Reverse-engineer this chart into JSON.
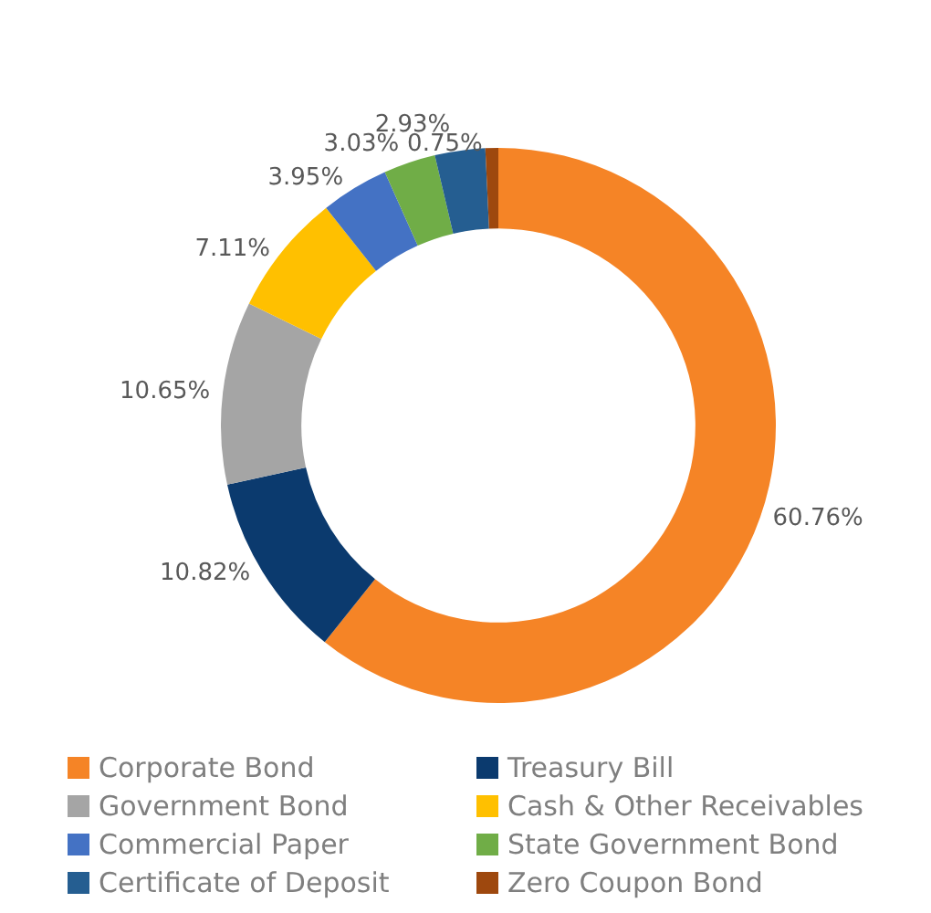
{
  "chart_data": {
    "type": "donut",
    "categories": [
      "Corporate Bond",
      "Treasury Bill",
      "Government Bond",
      "Cash & Other Receivables",
      "Commercial Paper",
      "State Government Bond",
      "Certificate of Deposit",
      "Zero Coupon Bond"
    ],
    "values": [
      60.76,
      10.82,
      10.65,
      7.11,
      3.95,
      3.03,
      2.93,
      0.75
    ],
    "colors": [
      "#f58426",
      "#0b3a6e",
      "#a5a5a5",
      "#ffc000",
      "#4472c4",
      "#70ad47",
      "#255e91",
      "#9e480e"
    ],
    "value_labels": [
      "60.76%",
      "10.82%",
      "10.65%",
      "7.11%",
      "3.95%",
      "3.03%",
      "2.93%",
      "0.75%"
    ],
    "legend": "bottom"
  }
}
